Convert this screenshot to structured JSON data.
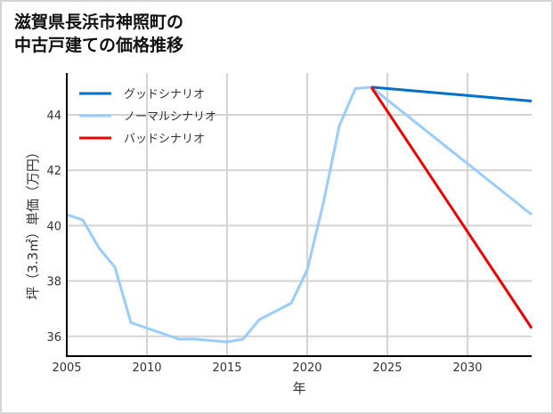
{
  "title": {
    "line1": "滋賀県長浜市神照町の",
    "line2": "中古戸建ての価格推移"
  },
  "colors": {
    "good": "#0070c8",
    "normal": "#99ccff",
    "bad": "#ee0000",
    "grid": "#d3d3d3",
    "axis": "#000000",
    "border": "#d4d4d4"
  },
  "chart_data": {
    "type": "line",
    "title": "滋賀県長浜市神照町の中古戸建ての価格推移",
    "xlabel": "年",
    "ylabel": "坪（3.3㎡）単価（万円）",
    "xlim": [
      2005,
      2034
    ],
    "ylim": [
      35.3,
      45.6
    ],
    "xticks": [
      2005,
      2010,
      2015,
      2020,
      2025,
      2030
    ],
    "yticks": [
      36,
      38,
      40,
      42,
      44
    ],
    "grid": true,
    "legend_position": "upper left",
    "series": [
      {
        "name": "グッドシナリオ",
        "color": "#0070c8",
        "x": [
          2024,
          2034
        ],
        "values": [
          45.0,
          44.5
        ]
      },
      {
        "name": "ノーマルシナリオ",
        "color": "#99ccff",
        "x": [
          2005,
          2006,
          2007,
          2008,
          2009,
          2010,
          2011,
          2012,
          2013,
          2014,
          2015,
          2016,
          2017,
          2018,
          2019,
          2020,
          2021,
          2022,
          2023,
          2024,
          2034
        ],
        "values": [
          40.4,
          40.2,
          39.2,
          38.5,
          36.5,
          36.3,
          36.1,
          35.9,
          35.9,
          35.85,
          35.8,
          35.9,
          36.6,
          36.9,
          37.2,
          38.4,
          40.8,
          43.6,
          44.95,
          45.0,
          40.4
        ]
      },
      {
        "name": "バッドシナリオ",
        "color": "#ee0000",
        "x": [
          2024,
          2034
        ],
        "values": [
          45.0,
          36.3
        ]
      }
    ]
  }
}
